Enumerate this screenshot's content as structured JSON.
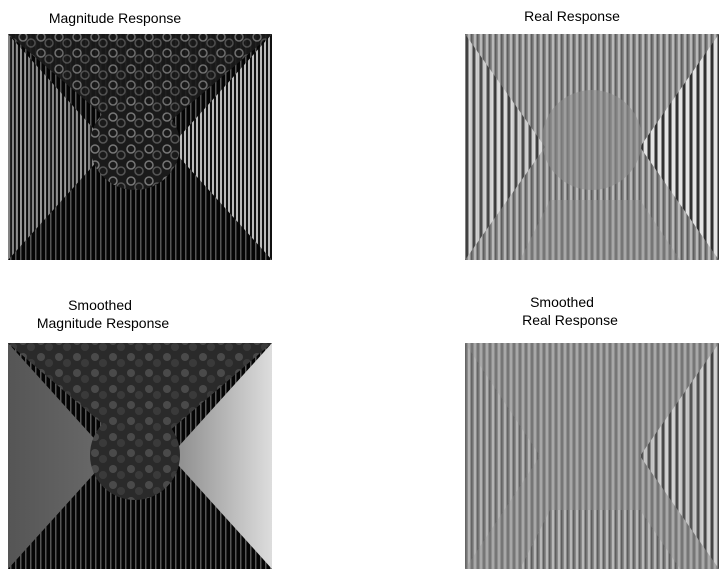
{
  "panels": [
    {
      "title_lines": [
        "Magnitude Response"
      ]
    },
    {
      "title_lines": [
        "Real Response"
      ]
    },
    {
      "title_lines": [
        "Smoothed",
        "Magnitude Response"
      ]
    },
    {
      "title_lines": [
        "Smoothed",
        "Real Response"
      ]
    }
  ]
}
